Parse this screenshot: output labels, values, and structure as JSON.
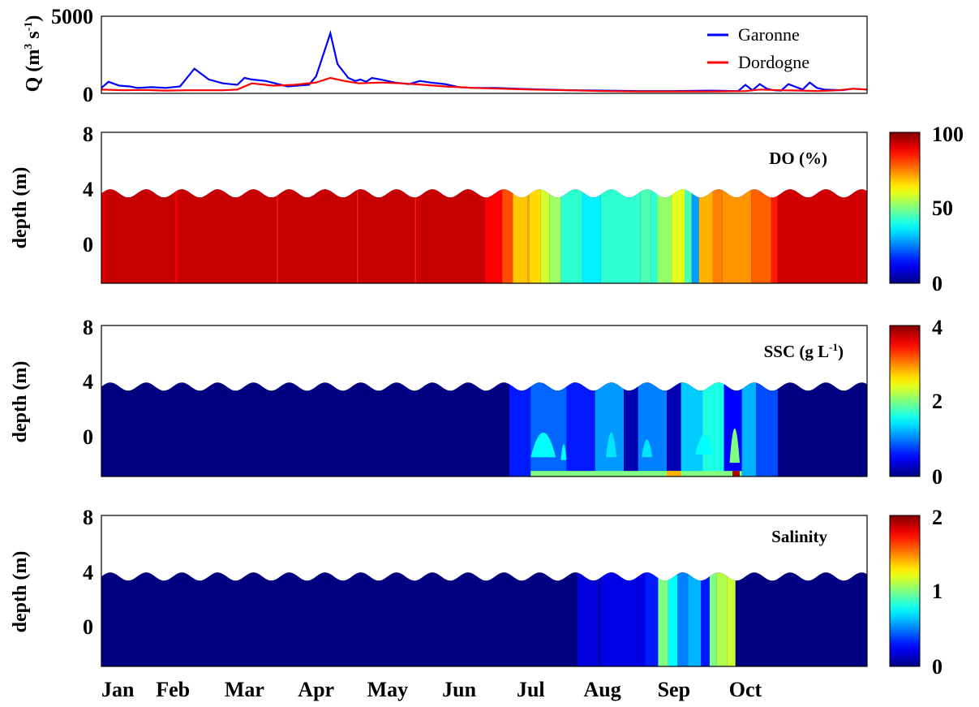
{
  "chart_data": [
    {
      "type": "line",
      "ylabel_base": "Q (m",
      "ylabel_sup1": "3",
      "ylabel_mid": " s",
      "ylabel_sup2": "-1",
      "ylabel_end": ")",
      "ylim": [
        0,
        5000
      ],
      "yticks": [
        "5000",
        "0"
      ],
      "legend_position": "top-right",
      "series": [
        {
          "name": "Garonne",
          "color": "#0000ff",
          "x": [
            0,
            0.1,
            0.25,
            0.4,
            0.5,
            0.7,
            0.9,
            1.1,
            1.3,
            1.5,
            1.7,
            1.9,
            2.0,
            2.1,
            2.3,
            2.6,
            2.9,
            3.0,
            3.2,
            3.3,
            3.45,
            3.55,
            3.62,
            3.7,
            3.78,
            3.9,
            4.1,
            4.3,
            4.45,
            4.6,
            4.8,
            5.0,
            5.2,
            5.5,
            5.8,
            6.2,
            6.6,
            7.0,
            7.5,
            8.0,
            8.5,
            8.9,
            9.0,
            9.1,
            9.2,
            9.3,
            9.4,
            9.5,
            9.6,
            9.8,
            9.9,
            10.0,
            10.1,
            10.35,
            10.5,
            10.7
          ],
          "y": [
            350,
            750,
            500,
            450,
            350,
            400,
            350,
            450,
            1600,
            900,
            650,
            550,
            1000,
            900,
            800,
            450,
            550,
            1100,
            3900,
            1900,
            1000,
            800,
            900,
            750,
            1000,
            900,
            700,
            600,
            800,
            700,
            600,
            400,
            350,
            350,
            300,
            250,
            200,
            180,
            150,
            150,
            180,
            150,
            550,
            200,
            600,
            300,
            200,
            180,
            600,
            250,
            700,
            350,
            250,
            200,
            300,
            250
          ]
        },
        {
          "name": "Dordogne",
          "color": "#ff0000",
          "x": [
            0,
            0.3,
            0.6,
            0.9,
            1.2,
            1.5,
            1.7,
            1.9,
            2.1,
            2.4,
            2.7,
            3.0,
            3.2,
            3.4,
            3.6,
            3.9,
            4.2,
            4.5,
            4.8,
            5.2,
            5.6,
            6.0,
            6.5,
            7.0,
            7.5,
            8.0,
            8.5,
            9.0,
            9.2,
            9.5,
            9.8,
            10.0,
            10.3,
            10.5,
            10.7
          ],
          "y": [
            250,
            200,
            220,
            180,
            200,
            200,
            200,
            250,
            650,
            500,
            550,
            700,
            1000,
            800,
            650,
            700,
            650,
            550,
            450,
            350,
            300,
            250,
            200,
            150,
            120,
            120,
            120,
            150,
            250,
            200,
            180,
            150,
            200,
            300,
            250
          ]
        }
      ]
    },
    {
      "type": "heatmap",
      "title": "DO (%)",
      "ylabel": "depth (m)",
      "yticks": [
        "8",
        "4",
        "0"
      ],
      "ylim": [
        -3,
        8
      ],
      "colorbar": {
        "min": 0,
        "max": 100,
        "ticks": [
          "100",
          "50",
          "0"
        ]
      },
      "segments": [
        [
          0.0,
          0.06,
          90
        ],
        [
          0.06,
          1.03,
          93
        ],
        [
          1.03,
          1.06,
          88
        ],
        [
          1.06,
          2.45,
          93
        ],
        [
          2.45,
          2.47,
          85
        ],
        [
          2.47,
          3.57,
          93
        ],
        [
          3.57,
          3.59,
          85
        ],
        [
          3.59,
          4.38,
          93
        ],
        [
          4.38,
          4.4,
          85
        ],
        [
          4.4,
          4.48,
          92
        ],
        [
          4.48,
          5.36,
          93
        ],
        [
          5.36,
          5.6,
          88
        ],
        [
          5.6,
          5.75,
          80
        ],
        [
          5.75,
          5.96,
          68
        ],
        [
          5.96,
          5.98,
          72
        ],
        [
          5.98,
          6.14,
          66
        ],
        [
          6.14,
          6.26,
          58
        ],
        [
          6.26,
          6.42,
          53
        ],
        [
          6.42,
          6.72,
          42
        ],
        [
          6.72,
          6.98,
          36
        ],
        [
          6.98,
          7.53,
          42
        ],
        [
          7.53,
          7.68,
          45
        ],
        [
          7.68,
          7.77,
          42
        ],
        [
          7.77,
          7.97,
          52
        ],
        [
          7.97,
          8.15,
          60
        ],
        [
          8.15,
          8.25,
          45
        ],
        [
          8.25,
          8.35,
          28
        ],
        [
          8.35,
          8.54,
          70
        ],
        [
          8.54,
          8.68,
          75
        ],
        [
          8.68,
          9.08,
          73
        ],
        [
          9.08,
          9.36,
          78
        ],
        [
          9.36,
          9.45,
          85
        ],
        [
          9.45,
          10.7,
          92
        ]
      ]
    },
    {
      "type": "heatmap",
      "title_base": "SSC (g L",
      "title_sup": "-1",
      "title_end": ")",
      "ylabel": "depth (m)",
      "yticks": [
        "8",
        "4",
        "0"
      ],
      "ylim": [
        -3,
        8
      ],
      "colorbar": {
        "min": 0,
        "max": 4,
        "ticks": [
          "4",
          "2",
          "0"
        ]
      },
      "segments": [
        [
          5.7,
          6.0,
          0.6
        ],
        [
          6.0,
          6.5,
          0.9
        ],
        [
          6.5,
          6.9,
          0.6
        ],
        [
          6.9,
          7.3,
          1.1
        ],
        [
          7.3,
          7.5,
          0.2
        ],
        [
          7.5,
          7.9,
          1.0
        ],
        [
          7.9,
          8.1,
          0.2
        ],
        [
          8.1,
          8.4,
          1.3
        ],
        [
          8.4,
          8.7,
          1.6
        ],
        [
          8.7,
          8.95,
          0.5
        ],
        [
          8.95,
          9.15,
          1.2
        ],
        [
          9.15,
          9.45,
          0.8
        ]
      ],
      "plumes": [
        [
          6.0,
          6.35,
          -1.6,
          2.0,
          1.5
        ],
        [
          6.42,
          6.5,
          -1.8,
          0.5,
          1.5
        ],
        [
          7.05,
          7.2,
          -1.6,
          2.0,
          1.4
        ],
        [
          7.55,
          7.7,
          -1.6,
          1.0,
          1.4
        ],
        [
          8.3,
          8.55,
          -1.4,
          1.5,
          1.5
        ],
        [
          8.78,
          8.92,
          -2.0,
          3.0,
          2.0
        ]
      ],
      "bottom_layer": [
        [
          6.0,
          8.95,
          2.0
        ],
        [
          8.82,
          8.92,
          3.8
        ],
        [
          7.9,
          8.1,
          2.8
        ]
      ]
    },
    {
      "type": "heatmap",
      "title": "Salinity",
      "ylabel": "depth (m)",
      "yticks": [
        "8",
        "4",
        "0"
      ],
      "ylim": [
        -3,
        8
      ],
      "colorbar": {
        "min": 0,
        "max": 2,
        "ticks": [
          "2",
          "1",
          "0"
        ]
      },
      "segments": [
        [
          6.65,
          6.95,
          0.18
        ],
        [
          6.95,
          6.98,
          0.05
        ],
        [
          6.98,
          7.6,
          0.2
        ],
        [
          7.6,
          7.78,
          0.3
        ],
        [
          7.78,
          7.92,
          1.0
        ],
        [
          7.92,
          8.05,
          0.75
        ],
        [
          8.05,
          8.2,
          0.5
        ],
        [
          8.2,
          8.38,
          0.6
        ],
        [
          8.38,
          8.5,
          0.3
        ],
        [
          8.5,
          8.6,
          1.0
        ],
        [
          8.6,
          8.75,
          1.1
        ],
        [
          8.75,
          8.86,
          1.15
        ]
      ]
    }
  ],
  "x_axis": {
    "range": [
      0,
      10.7
    ],
    "months": [
      "Jan",
      "Feb",
      "Mar",
      "Apr",
      "May",
      "Jun",
      "Jul",
      "Aug",
      "Sep",
      "Oct"
    ],
    "month_positions": [
      0,
      1,
      2,
      3,
      4,
      5,
      6,
      7,
      8,
      9
    ]
  }
}
